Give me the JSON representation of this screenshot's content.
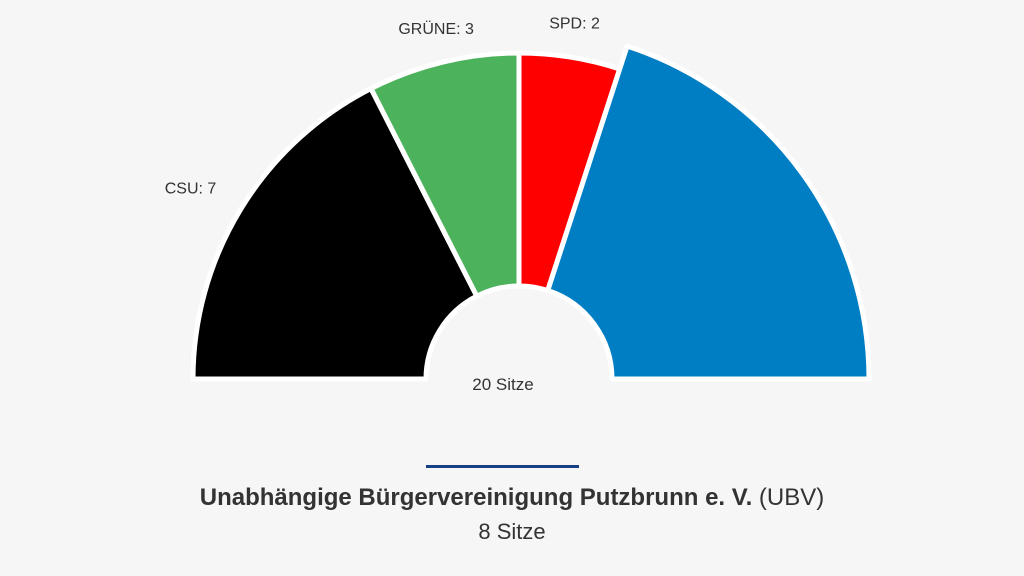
{
  "chart_data": {
    "type": "pie",
    "variant": "semicircle-parliament",
    "total_label": "20 Sitze",
    "total_seats": 20,
    "segments": [
      {
        "party": "CSU",
        "seats": 7,
        "label": "CSU: 7",
        "color": "#000000"
      },
      {
        "party": "GRÜNE",
        "seats": 3,
        "label": "GRÜNE: 3",
        "color": "#4cb35c"
      },
      {
        "party": "SPD",
        "seats": 2,
        "label": "SPD: 2",
        "color": "#ff0000"
      },
      {
        "party": "UBV",
        "seats": 8,
        "label": "",
        "color": "#007ec4"
      }
    ]
  },
  "caption": {
    "party_name": "Unabhängige Bürgervereinigung Putzbrunn e. V.",
    "party_abbr": "(UBV)",
    "seats_text": "8 Sitze",
    "divider_color": "#163f85"
  }
}
